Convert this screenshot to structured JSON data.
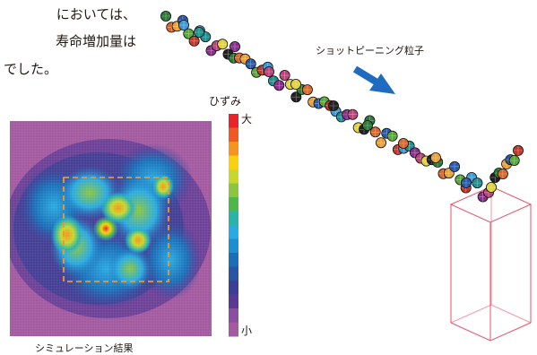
{
  "body_text": {
    "line1": "においては、",
    "line2": "寿命増加量は",
    "line3": "でした。"
  },
  "labels": {
    "particles": "ショットピーニング粒子",
    "strain": "ひずみ",
    "scale_max": "大",
    "scale_min": "小",
    "simulation_result": "シミュレーション結果"
  },
  "colors": {
    "background_field": "#a35aa0",
    "arrow": "#1f6bbf",
    "box_lines": "#e8506a",
    "dashed_box": "#f0962a",
    "colorbar": [
      "#e8232a",
      "#ef5a24",
      "#f7941d",
      "#fbd10f",
      "#c6d82e",
      "#8cc63f",
      "#4cb848",
      "#2bb3a8",
      "#29abe2",
      "#1c8fd1",
      "#1b6fb8",
      "#2a54a4",
      "#3b3f95",
      "#5b3a96",
      "#8a4ea3",
      "#a35aa0"
    ],
    "particle_palette": [
      "#2b7a3a",
      "#c0392b",
      "#e0d23a",
      "#2a5aa8",
      "#8a2f8f",
      "#d9662a",
      "#3a9ad9",
      "#222222",
      "#5aa83a",
      "#b8447a",
      "#e8a13a",
      "#1f8f8f"
    ]
  }
}
